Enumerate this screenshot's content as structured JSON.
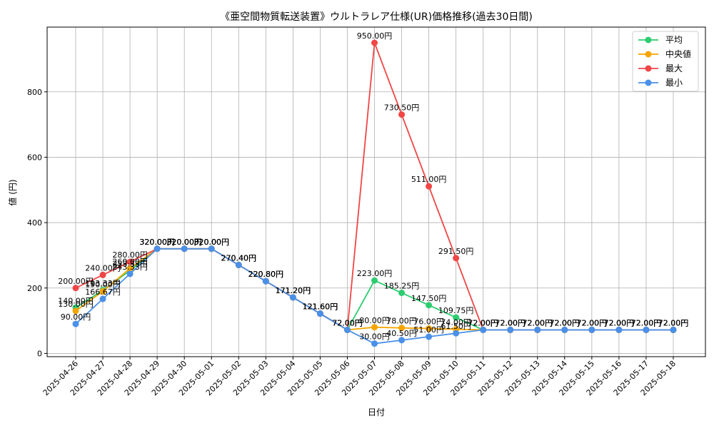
{
  "chart_data": {
    "type": "line",
    "title": "《亜空間物質転送装置》ウルトラレア仕様(UR)価格推移(過去30日間)",
    "xlabel": "日付",
    "ylabel": "値 (円)",
    "ylim": [
      -10,
      998
    ],
    "yticks": [
      0,
      200,
      400,
      600,
      800
    ],
    "grid": true,
    "legend_position": "top-right",
    "categories": [
      "2025-04-26",
      "2025-04-27",
      "2025-04-28",
      "2025-04-29",
      "2025-04-30",
      "2025-05-01",
      "2025-05-02",
      "2025-05-03",
      "2025-05-04",
      "2025-05-05",
      "2025-05-06",
      "2025-05-07",
      "2025-05-08",
      "2025-05-09",
      "2025-05-10",
      "2025-05-11",
      "2025-05-12",
      "2025-05-13",
      "2025-05-14",
      "2025-05-15",
      "2025-05-16",
      "2025-05-17",
      "2025-05-18"
    ],
    "series": [
      {
        "name": "平均",
        "color": "#2ecc71",
        "values": [
          140,
          193.33,
          253.33,
          320,
          320,
          320,
          270.4,
          220.8,
          171.2,
          121.6,
          72,
          223,
          185.25,
          147.5,
          109.75,
          72,
          72,
          72,
          72,
          72,
          72,
          72,
          72
        ],
        "labels": [
          "140.00円",
          "193.33円",
          "253.33円",
          "320.00円",
          "320.00円",
          "320.00円",
          "270.40円",
          "220.80円",
          "171.20円",
          "121.60円",
          "72.00円",
          "223.00円",
          "185.25円",
          "147.50円",
          "109.75円",
          "72.00円",
          "72.00円",
          "72.00円",
          "72.00円",
          "72.00円",
          "72.00円",
          "72.00円",
          "72.00円"
        ]
      },
      {
        "name": "中央値",
        "color": "#f5a500",
        "values": [
          130,
          190,
          260,
          320,
          320,
          320,
          270.4,
          220.8,
          171.2,
          121.6,
          72,
          80,
          78,
          76,
          74,
          72,
          72,
          72,
          72,
          72,
          72,
          72,
          72
        ],
        "labels": [
          "130.00円",
          "190.00円",
          "260.00円",
          "320.00円",
          "320.00円",
          "320.00円",
          "270.40円",
          "220.80円",
          "171.20円",
          "121.60円",
          "72.00円",
          "80.00円",
          "78.00円",
          "76.00円",
          "74.00円",
          "72.00円",
          "72.00円",
          "72.00円",
          "72.00円",
          "72.00円",
          "72.00円",
          "72.00円",
          "72.00円"
        ]
      },
      {
        "name": "最大",
        "color": "#f04646",
        "values": [
          200,
          240,
          280,
          320,
          320,
          320,
          270.4,
          220.8,
          171.2,
          121.6,
          72,
          950,
          730.5,
          511,
          291.5,
          72,
          72,
          72,
          72,
          72,
          72,
          72,
          72
        ],
        "labels": [
          "200.00円",
          "240.00円",
          "280.00円",
          "320.00円",
          "320.00円",
          "320.00円",
          "270.40円",
          "220.80円",
          "171.20円",
          "121.60円",
          "72.00円",
          "950.00円",
          "730.50円",
          "511.00円",
          "291.50円",
          "72.00円",
          "72.00円",
          "72.00円",
          "72.00円",
          "72.00円",
          "72.00円",
          "72.00円",
          "72.00円"
        ]
      },
      {
        "name": "最小",
        "color": "#4a90e8",
        "values": [
          90,
          166.67,
          243.33,
          320,
          320,
          320,
          270.4,
          220.8,
          171.2,
          121.6,
          72,
          30,
          40.5,
          51,
          61.5,
          72,
          72,
          72,
          72,
          72,
          72,
          72,
          72
        ],
        "labels": [
          "90.00円",
          "166.67円",
          "243.33円",
          "320.00円",
          "320.00円",
          "320.00円",
          "270.40円",
          "220.80円",
          "171.20円",
          "121.60円",
          "72.00円",
          "30.00円",
          "40.50円",
          "51.00円",
          "61.50円",
          "72.00円",
          "72.00円",
          "72.00円",
          "72.00円",
          "72.00円",
          "72.00円",
          "72.00円",
          "72.00円"
        ]
      }
    ]
  }
}
